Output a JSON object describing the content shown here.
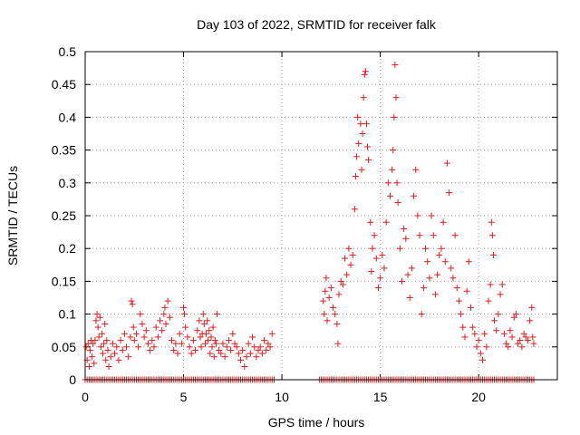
{
  "chart_data": {
    "type": "scatter",
    "title": "Day 103 of 2022, SRMTID for receiver falk",
    "xlabel": "GPS time / hours",
    "ylabel": "SRMTID / TECUs",
    "xlim": [
      0,
      24
    ],
    "ylim": [
      0,
      0.5
    ],
    "xticks": [
      0,
      5,
      10,
      15,
      20
    ],
    "yticks": [
      0,
      0.05,
      0.1,
      0.15,
      0.2,
      0.25,
      0.3,
      0.35,
      0.4,
      0.45,
      0.5
    ],
    "xtick_labels": [
      "0",
      "5",
      "10",
      "15",
      "20"
    ],
    "ytick_labels": [
      "0",
      "0.05",
      "0.1",
      "0.15",
      "0.2",
      "0.25",
      "0.3",
      "0.35",
      "0.4",
      "0.45",
      "0.5"
    ],
    "grid": true,
    "marker": "+",
    "color": "#e41a1c",
    "series": [
      {
        "points": [
          [
            0.05,
            0.05
          ],
          [
            0.1,
            0.03
          ],
          [
            0.15,
            0.055
          ],
          [
            0.2,
            0.02
          ],
          [
            0.25,
            0.045
          ],
          [
            0.3,
            0.06
          ],
          [
            0.35,
            0.035
          ],
          [
            0.4,
            0.055
          ],
          [
            0.45,
            0.025
          ],
          [
            0.5,
            0.06
          ],
          [
            0.55,
            0.09
          ],
          [
            0.6,
            0.1
          ],
          [
            0.65,
            0.08
          ],
          [
            0.7,
            0.065
          ],
          [
            0.75,
            0.095
          ],
          [
            0.8,
            0.05
          ],
          [
            0.85,
            0.07
          ],
          [
            0.9,
            0.04
          ],
          [
            0.95,
            0.055
          ],
          [
            1.0,
            0.085
          ],
          [
            1.05,
            0.03
          ],
          [
            1.1,
            0.06
          ],
          [
            1.15,
            0.045
          ],
          [
            1.2,
            0.02
          ],
          [
            1.3,
            0.035
          ],
          [
            1.4,
            0.055
          ],
          [
            1.5,
            0.04
          ],
          [
            1.6,
            0.05
          ],
          [
            1.7,
            0.03
          ],
          [
            1.8,
            0.06
          ],
          [
            1.9,
            0.045
          ],
          [
            2.0,
            0.07
          ],
          [
            2.1,
            0.05
          ],
          [
            2.2,
            0.035
          ],
          [
            2.3,
            0.065
          ],
          [
            2.35,
            0.12
          ],
          [
            2.4,
            0.115
          ],
          [
            2.45,
            0.08
          ],
          [
            2.5,
            0.06
          ],
          [
            2.6,
            0.07
          ],
          [
            2.7,
            0.05
          ],
          [
            2.8,
            0.1
          ],
          [
            2.9,
            0.085
          ],
          [
            3.0,
            0.065
          ],
          [
            3.1,
            0.075
          ],
          [
            3.2,
            0.055
          ],
          [
            3.3,
            0.045
          ],
          [
            3.4,
            0.06
          ],
          [
            3.5,
            0.05
          ],
          [
            3.6,
            0.08
          ],
          [
            3.7,
            0.065
          ],
          [
            3.8,
            0.09
          ],
          [
            3.9,
            0.075
          ],
          [
            4.0,
            0.1
          ],
          [
            4.05,
            0.11
          ],
          [
            4.1,
            0.085
          ],
          [
            4.2,
            0.12
          ],
          [
            4.3,
            0.095
          ],
          [
            4.4,
            0.06
          ],
          [
            4.5,
            0.045
          ],
          [
            4.6,
            0.055
          ],
          [
            4.7,
            0.04
          ],
          [
            4.8,
            0.07
          ],
          [
            4.9,
            0.055
          ],
          [
            5.0,
            0.11
          ],
          [
            5.05,
            0.1
          ],
          [
            5.1,
            0.08
          ],
          [
            5.2,
            0.065
          ],
          [
            5.3,
            0.05
          ],
          [
            5.4,
            0.04
          ],
          [
            5.5,
            0.06
          ],
          [
            5.6,
            0.045
          ],
          [
            5.7,
            0.075
          ],
          [
            5.8,
            0.09
          ],
          [
            5.85,
            0.065
          ],
          [
            5.9,
            0.05
          ],
          [
            5.95,
            0.07
          ],
          [
            6.0,
            0.1
          ],
          [
            6.05,
            0.085
          ],
          [
            6.1,
            0.055
          ],
          [
            6.15,
            0.07
          ],
          [
            6.2,
            0.09
          ],
          [
            6.25,
            0.06
          ],
          [
            6.3,
            0.075
          ],
          [
            6.35,
            0.04
          ],
          [
            6.4,
            0.065
          ],
          [
            6.45,
            0.05
          ],
          [
            6.5,
            0.08
          ],
          [
            6.55,
            0.035
          ],
          [
            6.6,
            0.06
          ],
          [
            6.65,
            0.055
          ],
          [
            6.7,
            0.1
          ],
          [
            6.8,
            0.045
          ],
          [
            6.9,
            0.04
          ],
          [
            7.0,
            0.055
          ],
          [
            7.1,
            0.035
          ],
          [
            7.2,
            0.05
          ],
          [
            7.3,
            0.06
          ],
          [
            7.4,
            0.045
          ],
          [
            7.5,
            0.07
          ],
          [
            7.6,
            0.055
          ],
          [
            7.7,
            0.05
          ],
          [
            7.8,
            0.04
          ],
          [
            7.9,
            0.03
          ],
          [
            8.0,
            0.045
          ],
          [
            8.1,
            0.02
          ],
          [
            8.2,
            0.035
          ],
          [
            8.3,
            0.055
          ],
          [
            8.4,
            0.04
          ],
          [
            8.5,
            0.065
          ],
          [
            8.6,
            0.05
          ],
          [
            8.7,
            0.035
          ],
          [
            8.8,
            0.045
          ],
          [
            8.9,
            0.05
          ],
          [
            9.0,
            0.04
          ],
          [
            9.1,
            0.06
          ],
          [
            9.2,
            0.045
          ],
          [
            9.3,
            0.055
          ],
          [
            9.4,
            0.05
          ],
          [
            9.5,
            0.07
          ],
          [
            12.1,
            0.12
          ],
          [
            12.15,
            0.1
          ],
          [
            12.2,
            0.135
          ],
          [
            12.25,
            0.155
          ],
          [
            12.3,
            0.09
          ],
          [
            12.4,
            0.125
          ],
          [
            12.5,
            0.14
          ],
          [
            12.6,
            0.11
          ],
          [
            12.7,
            0.1
          ],
          [
            12.8,
            0.085
          ],
          [
            12.85,
            0.055
          ],
          [
            12.9,
            0.13
          ],
          [
            13.0,
            0.15
          ],
          [
            13.1,
            0.145
          ],
          [
            13.2,
            0.185
          ],
          [
            13.3,
            0.16
          ],
          [
            13.4,
            0.2
          ],
          [
            13.5,
            0.175
          ],
          [
            13.6,
            0.19
          ],
          [
            13.7,
            0.26
          ],
          [
            13.75,
            0.31
          ],
          [
            13.8,
            0.34
          ],
          [
            13.85,
            0.4
          ],
          [
            13.9,
            0.36
          ],
          [
            14.0,
            0.39
          ],
          [
            14.05,
            0.32
          ],
          [
            14.1,
            0.375
          ],
          [
            14.15,
            0.43
          ],
          [
            14.2,
            0.465
          ],
          [
            14.25,
            0.47
          ],
          [
            14.3,
            0.39
          ],
          [
            14.35,
            0.355
          ],
          [
            14.4,
            0.335
          ],
          [
            14.5,
            0.24
          ],
          [
            14.55,
            0.165
          ],
          [
            14.6,
            0.2
          ],
          [
            14.7,
            0.22
          ],
          [
            14.8,
            0.185
          ],
          [
            14.9,
            0.14
          ],
          [
            15.0,
            0.155
          ],
          [
            15.1,
            0.19
          ],
          [
            15.2,
            0.17
          ],
          [
            15.3,
            0.24
          ],
          [
            15.4,
            0.3
          ],
          [
            15.5,
            0.28
          ],
          [
            15.6,
            0.32
          ],
          [
            15.65,
            0.35
          ],
          [
            15.7,
            0.4
          ],
          [
            15.75,
            0.48
          ],
          [
            15.8,
            0.43
          ],
          [
            15.85,
            0.3
          ],
          [
            15.9,
            0.27
          ],
          [
            16.0,
            0.2
          ],
          [
            16.1,
            0.15
          ],
          [
            16.2,
            0.23
          ],
          [
            16.3,
            0.215
          ],
          [
            16.4,
            0.16
          ],
          [
            16.5,
            0.125
          ],
          [
            16.6,
            0.17
          ],
          [
            16.7,
            0.28
          ],
          [
            16.8,
            0.32
          ],
          [
            16.9,
            0.25
          ],
          [
            17.0,
            0.22
          ],
          [
            17.1,
            0.1
          ],
          [
            17.2,
            0.14
          ],
          [
            17.3,
            0.2
          ],
          [
            17.4,
            0.18
          ],
          [
            17.5,
            0.155
          ],
          [
            17.6,
            0.25
          ],
          [
            17.7,
            0.22
          ],
          [
            17.8,
            0.13
          ],
          [
            17.9,
            0.16
          ],
          [
            18.0,
            0.19
          ],
          [
            18.1,
            0.2
          ],
          [
            18.2,
            0.24
          ],
          [
            18.3,
            0.18
          ],
          [
            18.4,
            0.33
          ],
          [
            18.5,
            0.285
          ],
          [
            18.6,
            0.17
          ],
          [
            18.7,
            0.155
          ],
          [
            18.8,
            0.22
          ],
          [
            18.9,
            0.14
          ],
          [
            19.0,
            0.12
          ],
          [
            19.1,
            0.1
          ],
          [
            19.2,
            0.08
          ],
          [
            19.3,
            0.065
          ],
          [
            19.4,
            0.135
          ],
          [
            19.5,
            0.18
          ],
          [
            19.6,
            0.11
          ],
          [
            19.7,
            0.08
          ],
          [
            19.8,
            0.07
          ],
          [
            19.9,
            0.05
          ],
          [
            20.0,
            0.06
          ],
          [
            20.1,
            0.04
          ],
          [
            20.2,
            0.03
          ],
          [
            20.3,
            0.07
          ],
          [
            20.4,
            0.05
          ],
          [
            20.5,
            0.12
          ],
          [
            20.6,
            0.145
          ],
          [
            20.65,
            0.24
          ],
          [
            20.7,
            0.22
          ],
          [
            20.75,
            0.19
          ],
          [
            20.8,
            0.09
          ],
          [
            20.9,
            0.075
          ],
          [
            21.0,
            0.1
          ],
          [
            21.1,
            0.13
          ],
          [
            21.2,
            0.145
          ],
          [
            21.3,
            0.07
          ],
          [
            21.4,
            0.055
          ],
          [
            21.5,
            0.05
          ],
          [
            21.6,
            0.075
          ],
          [
            21.7,
            0.065
          ],
          [
            21.8,
            0.095
          ],
          [
            21.9,
            0.1
          ],
          [
            22.0,
            0.055
          ],
          [
            22.1,
            0.06
          ],
          [
            22.2,
            0.05
          ],
          [
            22.3,
            0.07
          ],
          [
            22.4,
            0.065
          ],
          [
            22.5,
            0.06
          ],
          [
            22.6,
            0.09
          ],
          [
            22.7,
            0.11
          ],
          [
            22.75,
            0.065
          ],
          [
            22.8,
            0.055
          ]
        ],
        "zero_runs": [
          [
            0.0,
            9.6
          ],
          [
            11.9,
            22.8
          ]
        ],
        "zero_step": 0.1
      }
    ]
  }
}
